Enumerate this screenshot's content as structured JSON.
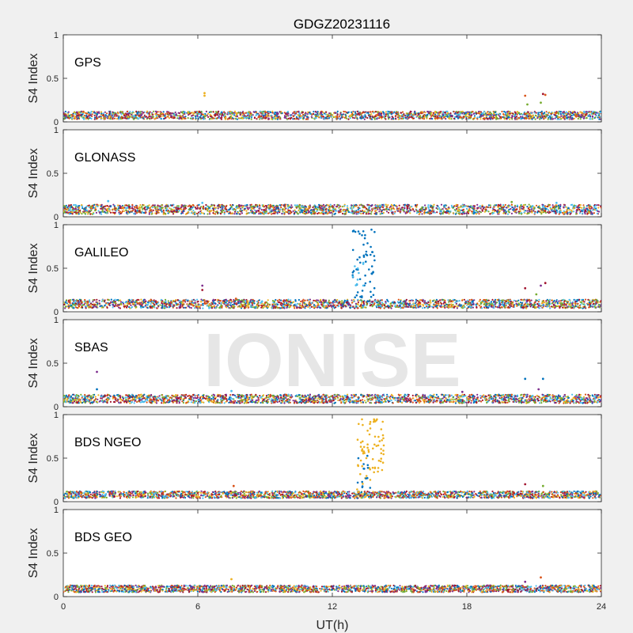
{
  "watermark": "IONISE",
  "chart_data": {
    "type": "scatter",
    "title": "GDGZ20231116",
    "xlabel": "UT(h)",
    "ylabel": "S4 Index",
    "xlim": [
      0,
      24
    ],
    "ylim": [
      0,
      1
    ],
    "xticks": [
      "0",
      "6",
      "12",
      "18",
      "24"
    ],
    "yticks": [
      "0",
      "0.5",
      "1"
    ],
    "grid": false,
    "series_colors": [
      "#0072bd",
      "#d95319",
      "#edb120",
      "#7e2f8e",
      "#77ac30",
      "#4dbeee",
      "#a2142f"
    ],
    "panels": [
      {
        "name": "GPS",
        "baseline": [
          0.03,
          0.12
        ],
        "spikes": [
          [
            6.3,
            0.33,
            2
          ],
          [
            6.3,
            0.3,
            2
          ],
          [
            20.6,
            0.3,
            1
          ],
          [
            20.7,
            0.2,
            4
          ],
          [
            21.4,
            0.32,
            6
          ],
          [
            21.5,
            0.31,
            1
          ],
          [
            21.3,
            0.22,
            4
          ]
        ],
        "bursts": []
      },
      {
        "name": "GLONASS",
        "baseline": [
          0.03,
          0.14
        ],
        "spikes": [
          [
            2.0,
            0.18,
            5
          ],
          [
            6.2,
            0.16,
            5
          ],
          [
            20.0,
            0.17,
            4
          ],
          [
            22.0,
            0.16,
            5
          ]
        ],
        "bursts": []
      },
      {
        "name": "GALILEO",
        "baseline": [
          0.04,
          0.14
        ],
        "spikes": [
          [
            6.2,
            0.3,
            3
          ],
          [
            6.2,
            0.25,
            6
          ],
          [
            7.7,
            0.15,
            1
          ],
          [
            20.6,
            0.27,
            6
          ],
          [
            21.3,
            0.3,
            3
          ],
          [
            21.5,
            0.33,
            6
          ],
          [
            21.1,
            0.2,
            4
          ]
        ],
        "bursts": [
          {
            "x": [
              12.9,
              13.9
            ],
            "y": [
              0.1,
              1.0
            ],
            "series": 0,
            "count": 60
          },
          {
            "x": [
              12.9,
              13.4
            ],
            "y": [
              0.3,
              0.6
            ],
            "series": 5,
            "count": 10
          }
        ]
      },
      {
        "name": "SBAS",
        "baseline": [
          0.04,
          0.14
        ],
        "spikes": [
          [
            1.5,
            0.4,
            3
          ],
          [
            1.5,
            0.2,
            0
          ],
          [
            20.6,
            0.32,
            0
          ],
          [
            21.4,
            0.32,
            0
          ],
          [
            21.2,
            0.2,
            3
          ],
          [
            17.8,
            0.17,
            3
          ],
          [
            7.5,
            0.18,
            5
          ]
        ],
        "bursts": []
      },
      {
        "name": "BDS NGEO",
        "baseline": [
          0.04,
          0.12
        ],
        "spikes": [
          [
            7.6,
            0.18,
            1
          ],
          [
            20.6,
            0.2,
            6
          ],
          [
            21.4,
            0.18,
            4
          ]
        ],
        "bursts": [
          {
            "x": [
              13.1,
              13.7
            ],
            "y": [
              0.05,
              0.95
            ],
            "series": 2,
            "count": 40
          },
          {
            "x": [
              13.8,
              14.3
            ],
            "y": [
              0.3,
              0.95
            ],
            "series": 2,
            "count": 35
          },
          {
            "x": [
              13.1,
              13.7
            ],
            "y": [
              0.05,
              0.6
            ],
            "series": 0,
            "count": 15
          }
        ]
      },
      {
        "name": "BDS GEO",
        "baseline": [
          0.05,
          0.13
        ],
        "spikes": [
          [
            7.5,
            0.2,
            2
          ],
          [
            21.3,
            0.22,
            1
          ],
          [
            20.6,
            0.17,
            3
          ]
        ],
        "bursts": []
      }
    ]
  }
}
